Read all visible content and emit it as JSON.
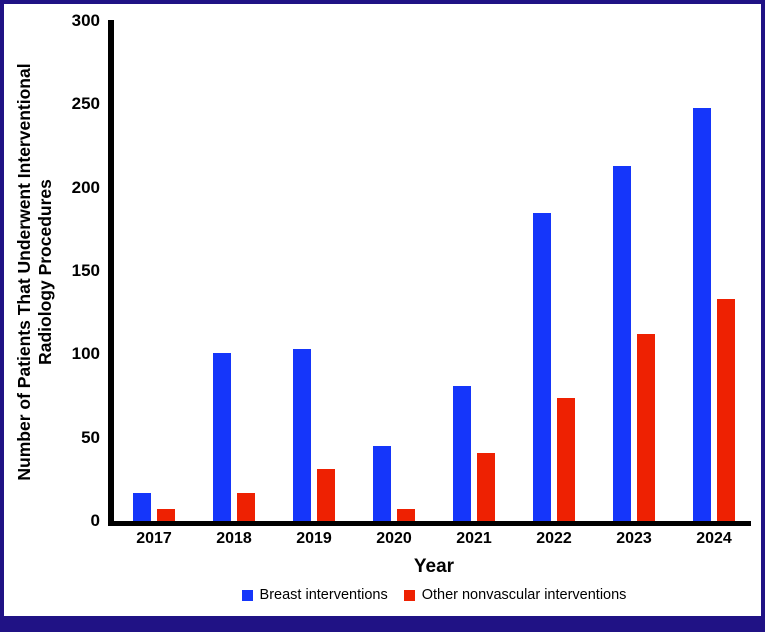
{
  "figure": {
    "border_color": "#201285",
    "background_color": "#ffffff"
  },
  "chart_data": {
    "type": "bar",
    "title": "",
    "xlabel": "Year",
    "ylabel": "Number of Patients That Underwent Interventional Radiology Procedures",
    "ylabel_lines": [
      "Number of Patients That Underwent Interventional",
      "Radiology Procedures"
    ],
    "categories": [
      "2017",
      "2018",
      "2019",
      "2020",
      "2021",
      "2022",
      "2023",
      "2024"
    ],
    "series": [
      {
        "name": "Breast interventions",
        "color": "#1536fa",
        "values": [
          17,
          101,
          103,
          45,
          81,
          185,
          213,
          248
        ]
      },
      {
        "name": "Other nonvascular interventions",
        "color": "#ee2102",
        "values": [
          7,
          17,
          31,
          7,
          41,
          74,
          112,
          133
        ]
      }
    ],
    "ylim": [
      0,
      300
    ],
    "y_ticks": [
      0,
      50,
      100,
      150,
      200,
      250,
      300
    ],
    "grid": false,
    "legend_position": "bottom-center",
    "axis_color": "#000000"
  }
}
